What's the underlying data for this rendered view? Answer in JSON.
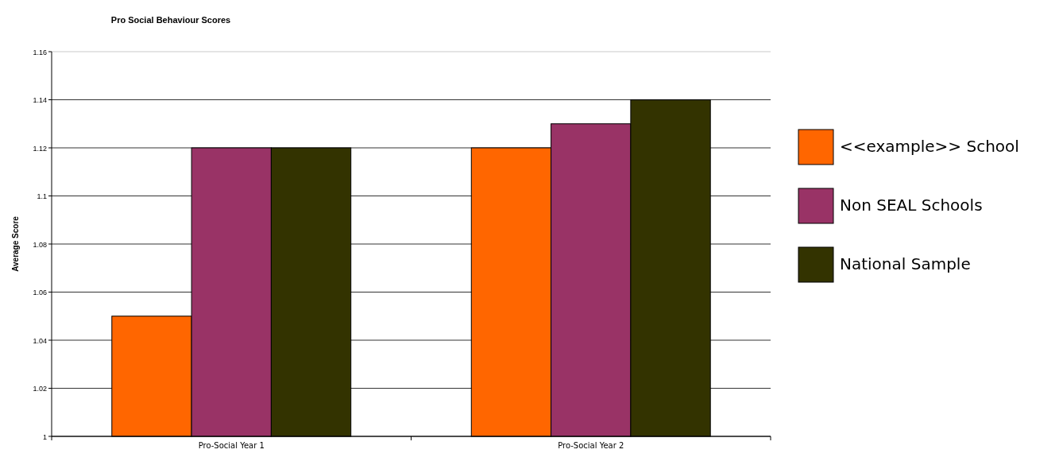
{
  "chart_data": {
    "type": "bar",
    "title": "Pro Social Behaviour Scores",
    "ylabel": "Average Score",
    "categories": [
      "Pro-Social Year 1",
      "Pro-Social Year 2"
    ],
    "series": [
      {
        "name": "<<example>> School",
        "color": "#ff6600",
        "values": [
          1.05,
          1.12
        ]
      },
      {
        "name": "Non SEAL Schools",
        "color": "#993366",
        "values": [
          1.12,
          1.13
        ]
      },
      {
        "name": "National Sample",
        "color": "#333300",
        "values": [
          1.12,
          1.14
        ]
      }
    ],
    "ylim": [
      1,
      1.16
    ],
    "yticks": [
      1,
      1.02,
      1.04,
      1.06,
      1.08,
      1.1,
      1.12,
      1.14,
      1.16
    ],
    "grid": "y",
    "legend": "right"
  }
}
